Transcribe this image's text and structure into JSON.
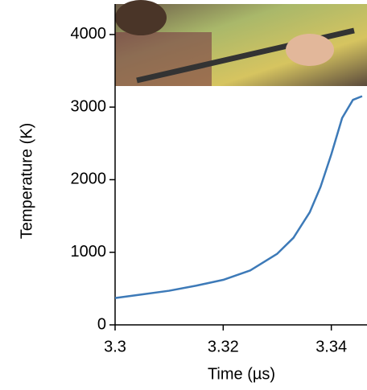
{
  "chart_data": {
    "type": "line",
    "x_label": "Time (µs)",
    "y_label": "Temperature (K)",
    "x": [
      3.3,
      3.305,
      3.31,
      3.315,
      3.32,
      3.325,
      3.33,
      3.333,
      3.336,
      3.338,
      3.34,
      3.342,
      3.344,
      3.3457
    ],
    "series": [
      {
        "color": "#3d7ab8",
        "values": [
          370,
          420,
          470,
          540,
          620,
          750,
          980,
          1200,
          1550,
          1900,
          2350,
          2850,
          3100,
          3150
        ]
      }
    ],
    "xlim": [
      3.3,
      3.3466
    ],
    "xticks": [
      3.3,
      3.32,
      3.34
    ],
    "ylim": [
      0,
      4420
    ],
    "yticks": [
      0,
      1000,
      2000,
      3000,
      4000
    ]
  }
}
